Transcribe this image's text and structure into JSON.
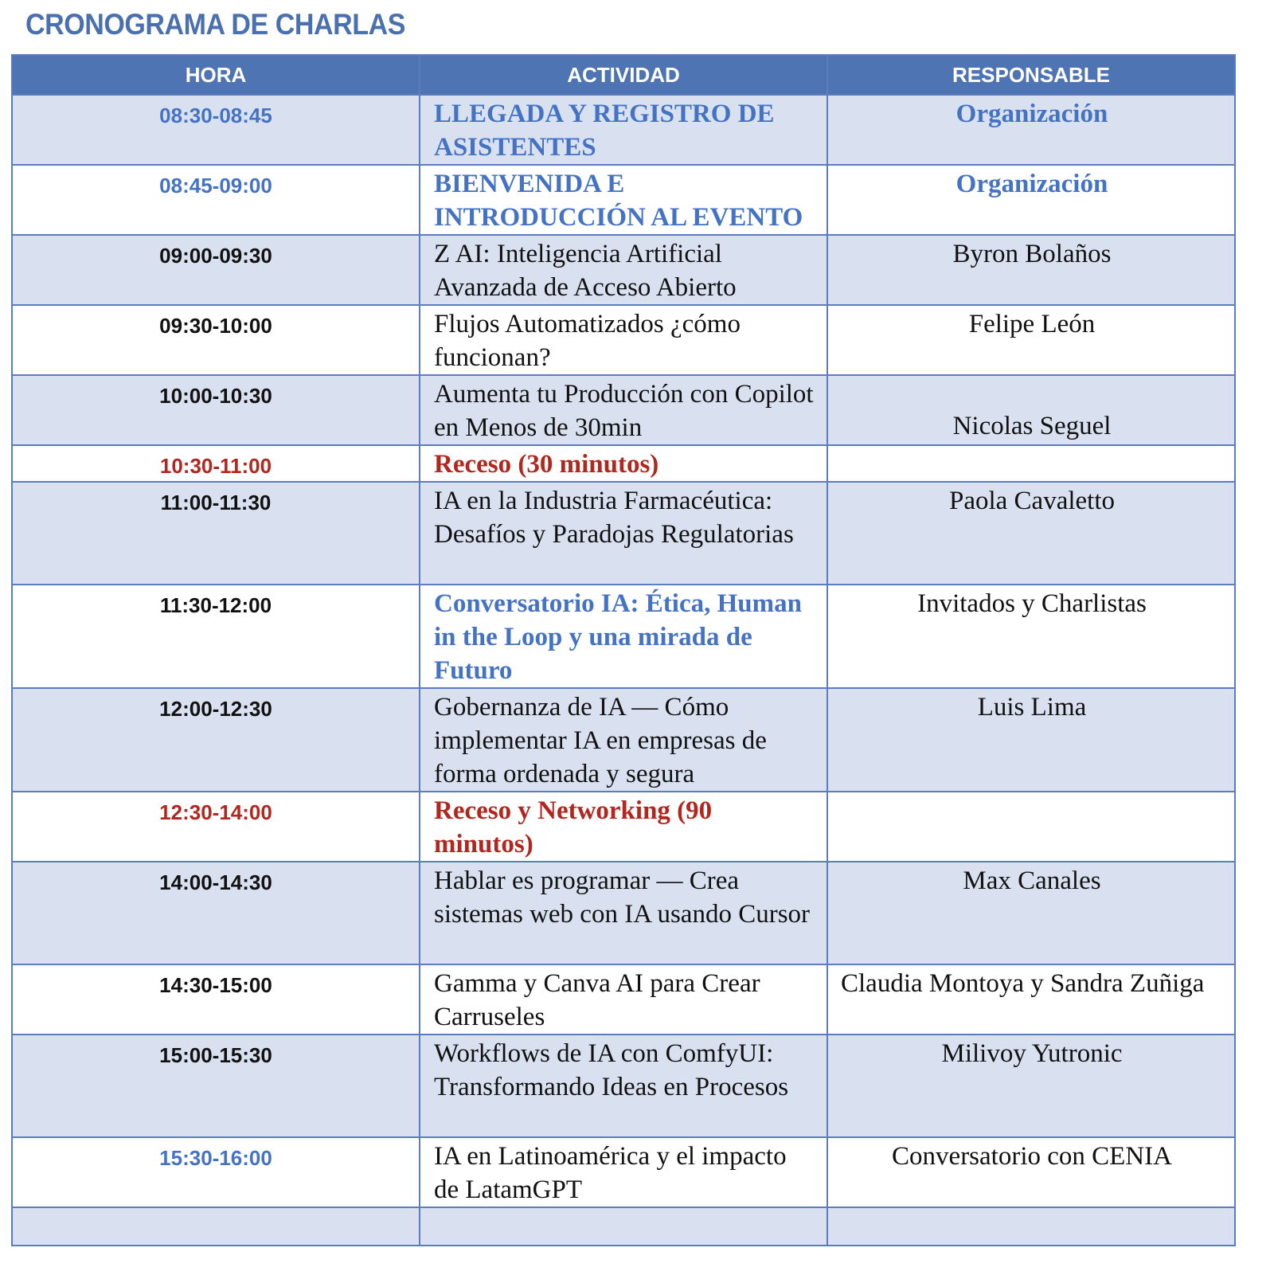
{
  "title": "CRONOGRAMA DE CHARLAS",
  "colors": {
    "header_bg": "#4f74b3",
    "accent_blue": "#4472c4",
    "break_red": "#b3261e",
    "row_shade": "#d9e1f0"
  },
  "headers": {
    "time": "HORA",
    "activity": "ACTIVIDAD",
    "responsible": "RESPONSABLE"
  },
  "rows": [
    {
      "time": "08:30-08:45",
      "activity": "LLEGADA Y REGISTRO DE ASISTENTES",
      "responsible": "Organización",
      "style": "highlight"
    },
    {
      "time": "08:45-09:00",
      "activity": "BIENVENIDA E INTRODUCCIÓN AL EVENTO",
      "responsible": "Organización",
      "style": "highlight"
    },
    {
      "time": "09:00-09:30",
      "activity": "Z AI: Inteligencia Artificial Avanzada de Acceso Abierto",
      "responsible": "Byron Bolaños",
      "style": "normal"
    },
    {
      "time": "09:30-10:00",
      "activity": "Flujos Automatizados ¿cómo funcionan?",
      "responsible": "Felipe León",
      "style": "normal"
    },
    {
      "time": "10:00-10:30",
      "activity": "Aumenta tu Producción con Copilot en Menos de 30min",
      "responsible": "Nicolas Seguel",
      "style": "normal"
    },
    {
      "time": "10:30-11:00",
      "activity": "Receso (30 minutos)",
      "responsible": "",
      "style": "break"
    },
    {
      "time": "11:00-11:30",
      "activity": "IA en la Industria Farmacéutica: Desafíos y Paradojas Regulatorias",
      "responsible": "Paola Cavaletto",
      "style": "normal"
    },
    {
      "time": "11:30-12:00",
      "activity": "Conversatorio IA: Ética, Human in the Loop y una mirada de Futuro",
      "responsible": "Invitados y Charlistas",
      "style": "panel"
    },
    {
      "time": "12:00-12:30",
      "activity": "Gobernanza de IA — Cómo implementar IA en empresas de forma ordenada y segura",
      "responsible": "Luis Lima",
      "style": "normal"
    },
    {
      "time": "12:30-14:00",
      "activity": "Receso y Networking (90 minutos)",
      "responsible": "",
      "style": "break"
    },
    {
      "time": "14:00-14:30",
      "activity": "Hablar es programar — Crea sistemas web con IA usando Cursor",
      "responsible": "Max Canales",
      "style": "normal"
    },
    {
      "time": "14:30-15:00",
      "activity": "Gamma y Canva AI para Crear Carruseles",
      "responsible": "Claudia Montoya y Sandra Zuñiga",
      "style": "normal"
    },
    {
      "time": "15:00-15:30",
      "activity": "Workflows de IA con ComfyUI: Transformando Ideas en Procesos",
      "responsible": "Milivoy Yutronic",
      "style": "normal"
    },
    {
      "time": "15:30-16:00",
      "activity": "IA en Latinoamérica y el impacto de LatamGPT",
      "responsible": "Conversatorio con CENIA",
      "style": "closing"
    },
    {
      "time": "",
      "activity": "",
      "responsible": "",
      "style": "empty"
    }
  ]
}
